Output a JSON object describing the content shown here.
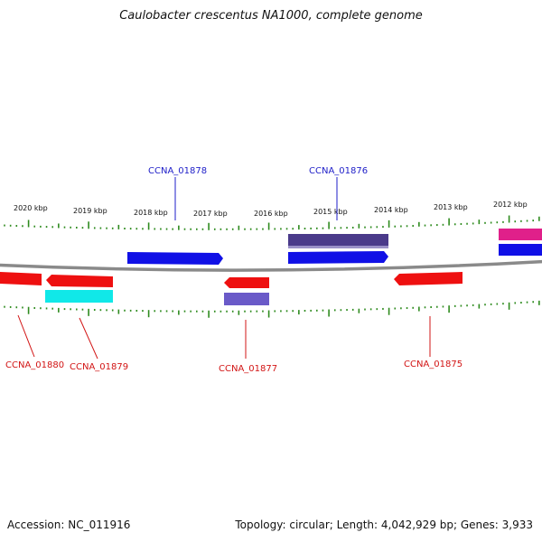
{
  "title": "Caulobacter crescentus NA1000, complete genome",
  "footer": {
    "accession": "Accession: NC_011916",
    "summary": "Topology: circular; Length: 4,042,929 bp; Genes: 3,933"
  },
  "colors": {
    "backbone": "#8a8a8a",
    "tick": "#2e8b1e",
    "label_forward": "#1e1ec8",
    "label_reverse": "#d21414"
  },
  "ticks": [
    {
      "label": "2020 kbp"
    },
    {
      "label": "2019 kbp"
    },
    {
      "label": "2018 kbp"
    },
    {
      "label": "2017 kbp"
    },
    {
      "label": "2016 kbp"
    },
    {
      "label": "2015 kbp"
    },
    {
      "label": "2014 kbp"
    },
    {
      "label": "2013 kbp"
    },
    {
      "label": "2012 kbp"
    }
  ],
  "genes": [
    {
      "label": "CCNA_01880",
      "strand": "reverse",
      "color": "red"
    },
    {
      "label": "CCNA_01879",
      "strand": "reverse",
      "color": "red"
    },
    {
      "label": "CCNA_01878",
      "strand": "forward",
      "color": "blue"
    },
    {
      "label": "CCNA_01877",
      "strand": "reverse",
      "color": "red"
    },
    {
      "label": "CCNA_01876",
      "strand": "forward",
      "color": "blue"
    },
    {
      "label": "CCNA_01875",
      "strand": "reverse",
      "color": "red"
    }
  ]
}
